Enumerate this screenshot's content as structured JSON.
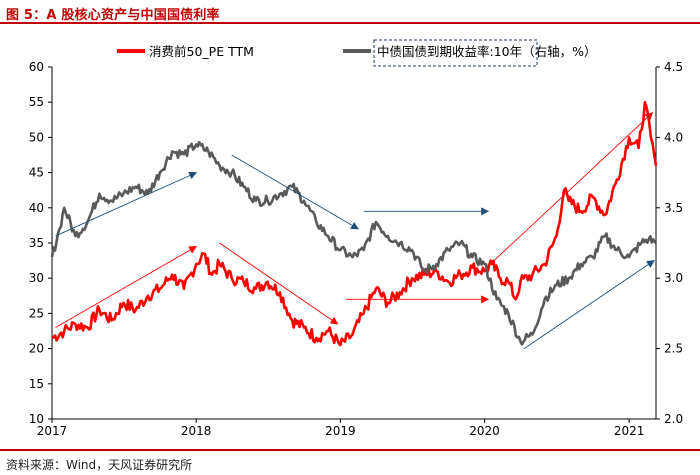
{
  "page": {
    "title": "图 5：A 股核心资产与中国国债利率",
    "source": "资料来源：Wind，天风证券研究所"
  },
  "colors": {
    "pe_series": "#ff0000",
    "yield_series": "#595959",
    "accent": "#c00000",
    "arrow_blue": "#1f4e79",
    "arrow_red": "#ff0000"
  },
  "chart_data": {
    "type": "line",
    "title": "",
    "legend": {
      "placement": "top",
      "items": [
        {
          "name": "消费前50_PE TTM",
          "color": "#ff0000"
        },
        {
          "name": "中债国债到期收益率:10年（右轴，%）",
          "color": "#595959"
        }
      ]
    },
    "x_ticks": [
      "2017",
      "2018",
      "2019",
      "2020",
      "2021"
    ],
    "xlim": [
      "2017-01-01",
      "2021-03-10"
    ],
    "ylim_left": [
      10,
      60
    ],
    "yticks_left": [
      "10",
      "15",
      "20",
      "25",
      "30",
      "35",
      "40",
      "45",
      "50",
      "55",
      "60"
    ],
    "ylim_right": [
      2.0,
      4.5
    ],
    "yticks_right": [
      "2.0",
      "2.5",
      "3.0",
      "3.5",
      "4.0",
      "4.5"
    ],
    "grid": false,
    "series": [
      {
        "name": "消费前50_PE TTM",
        "axis": "left",
        "color": "#ff0000",
        "points": [
          [
            "2017-01-01",
            21.5
          ],
          [
            "2017-02-01",
            22.5
          ],
          [
            "2017-03-01",
            23.5
          ],
          [
            "2017-04-01",
            23.0
          ],
          [
            "2017-05-01",
            25.5
          ],
          [
            "2017-06-01",
            24.0
          ],
          [
            "2017-07-01",
            26.5
          ],
          [
            "2017-08-01",
            25.5
          ],
          [
            "2017-09-01",
            27.5
          ],
          [
            "2017-10-01",
            28.5
          ],
          [
            "2017-11-01",
            30.5
          ],
          [
            "2017-12-01",
            28.5
          ],
          [
            "2018-01-01",
            32.0
          ],
          [
            "2018-01-20",
            33.5
          ],
          [
            "2018-02-10",
            30.5
          ],
          [
            "2018-03-01",
            32.0
          ],
          [
            "2018-04-01",
            30.0
          ],
          [
            "2018-05-01",
            29.5
          ],
          [
            "2018-06-01",
            28.5
          ],
          [
            "2018-07-01",
            29.5
          ],
          [
            "2018-08-01",
            28.0
          ],
          [
            "2018-09-01",
            24.0
          ],
          [
            "2018-10-01",
            23.0
          ],
          [
            "2018-11-01",
            21.5
          ],
          [
            "2018-12-01",
            22.5
          ],
          [
            "2019-01-01",
            20.5
          ],
          [
            "2019-02-01",
            22.0
          ],
          [
            "2019-03-01",
            25.0
          ],
          [
            "2019-04-01",
            28.5
          ],
          [
            "2019-05-01",
            26.5
          ],
          [
            "2019-06-01",
            28.0
          ],
          [
            "2019-07-01",
            30.0
          ],
          [
            "2019-08-01",
            30.5
          ],
          [
            "2019-09-01",
            31.0
          ],
          [
            "2019-10-01",
            29.5
          ],
          [
            "2019-11-01",
            30.5
          ],
          [
            "2019-12-01",
            31.5
          ],
          [
            "2020-01-01",
            31.0
          ],
          [
            "2020-01-20",
            32.0
          ],
          [
            "2020-02-10",
            30.0
          ],
          [
            "2020-03-01",
            29.5
          ],
          [
            "2020-03-20",
            27.0
          ],
          [
            "2020-04-01",
            29.5
          ],
          [
            "2020-05-01",
            30.5
          ],
          [
            "2020-06-01",
            32.0
          ],
          [
            "2020-07-01",
            36.0
          ],
          [
            "2020-07-20",
            42.5
          ],
          [
            "2020-08-01",
            41.0
          ],
          [
            "2020-09-01",
            39.5
          ],
          [
            "2020-10-01",
            41.5
          ],
          [
            "2020-11-01",
            39.0
          ],
          [
            "2020-12-01",
            44.0
          ],
          [
            "2021-01-01",
            50.0
          ],
          [
            "2021-01-25",
            48.5
          ],
          [
            "2021-02-10",
            55.0
          ],
          [
            "2021-02-25",
            50.0
          ],
          [
            "2021-03-10",
            46.0
          ]
        ]
      },
      {
        "name": "中债国债到期收益率:10年（右轴，%）",
        "axis": "right",
        "color": "#595959",
        "points": [
          [
            "2017-01-01",
            3.15
          ],
          [
            "2017-01-20",
            3.35
          ],
          [
            "2017-02-01",
            3.5
          ],
          [
            "2017-03-01",
            3.3
          ],
          [
            "2017-04-01",
            3.4
          ],
          [
            "2017-05-01",
            3.6
          ],
          [
            "2017-06-01",
            3.55
          ],
          [
            "2017-07-01",
            3.6
          ],
          [
            "2017-08-01",
            3.65
          ],
          [
            "2017-09-01",
            3.6
          ],
          [
            "2017-10-01",
            3.75
          ],
          [
            "2017-11-01",
            3.9
          ],
          [
            "2017-12-01",
            3.88
          ],
          [
            "2018-01-01",
            3.95
          ],
          [
            "2018-02-01",
            3.9
          ],
          [
            "2018-03-01",
            3.8
          ],
          [
            "2018-04-01",
            3.75
          ],
          [
            "2018-05-01",
            3.65
          ],
          [
            "2018-06-01",
            3.55
          ],
          [
            "2018-07-01",
            3.55
          ],
          [
            "2018-08-01",
            3.6
          ],
          [
            "2018-09-01",
            3.65
          ],
          [
            "2018-10-01",
            3.55
          ],
          [
            "2018-11-01",
            3.4
          ],
          [
            "2018-12-01",
            3.3
          ],
          [
            "2019-01-01",
            3.2
          ],
          [
            "2019-02-01",
            3.15
          ],
          [
            "2019-03-01",
            3.2
          ],
          [
            "2019-04-01",
            3.4
          ],
          [
            "2019-05-01",
            3.3
          ],
          [
            "2019-06-01",
            3.25
          ],
          [
            "2019-07-01",
            3.2
          ],
          [
            "2019-08-01",
            3.05
          ],
          [
            "2019-09-01",
            3.1
          ],
          [
            "2019-10-01",
            3.2
          ],
          [
            "2019-11-01",
            3.25
          ],
          [
            "2019-12-01",
            3.15
          ],
          [
            "2020-01-01",
            3.1
          ],
          [
            "2020-02-01",
            2.85
          ],
          [
            "2020-03-01",
            2.75
          ],
          [
            "2020-04-01",
            2.55
          ],
          [
            "2020-05-01",
            2.6
          ],
          [
            "2020-06-01",
            2.85
          ],
          [
            "2020-07-01",
            2.95
          ],
          [
            "2020-08-01",
            3.0
          ],
          [
            "2020-09-01",
            3.1
          ],
          [
            "2020-10-01",
            3.15
          ],
          [
            "2020-11-01",
            3.3
          ],
          [
            "2020-12-01",
            3.2
          ],
          [
            "2021-01-01",
            3.15
          ],
          [
            "2021-02-01",
            3.25
          ],
          [
            "2021-02-20",
            3.28
          ],
          [
            "2021-03-10",
            3.25
          ]
        ]
      }
    ],
    "annotations": [
      {
        "type": "arrow",
        "color": "#1f4e79",
        "from": [
          "2017-01-10",
          36.0
        ],
        "to": [
          "2018-01-01",
          45.0
        ]
      },
      {
        "type": "arrow",
        "color": "#1f4e79",
        "from": [
          "2018-04-01",
          47.5
        ],
        "to": [
          "2019-02-15",
          37.0
        ]
      },
      {
        "type": "arrow",
        "color": "#1f4e79",
        "from": [
          "2019-03-01",
          39.5
        ],
        "to": [
          "2020-01-10",
          39.5
        ]
      },
      {
        "type": "arrow",
        "color": "#1f4e79",
        "from": [
          "2020-04-10",
          20.0
        ],
        "to": [
          "2021-03-05",
          32.5
        ]
      },
      {
        "type": "arrow",
        "color": "#ff0000",
        "from": [
          "2017-01-10",
          23.0
        ],
        "to": [
          "2018-01-01",
          34.5
        ]
      },
      {
        "type": "arrow",
        "color": "#ff0000",
        "from": [
          "2018-03-01",
          35.0
        ],
        "to": [
          "2018-12-25",
          23.5
        ]
      },
      {
        "type": "arrow",
        "color": "#ff0000",
        "from": [
          "2019-01-15",
          27.0
        ],
        "to": [
          "2020-01-10",
          27.0
        ]
      },
      {
        "type": "arrow",
        "color": "#ff0000",
        "from": [
          "2020-01-25",
          32.5
        ],
        "to": [
          "2021-03-01",
          53.5
        ]
      }
    ]
  }
}
